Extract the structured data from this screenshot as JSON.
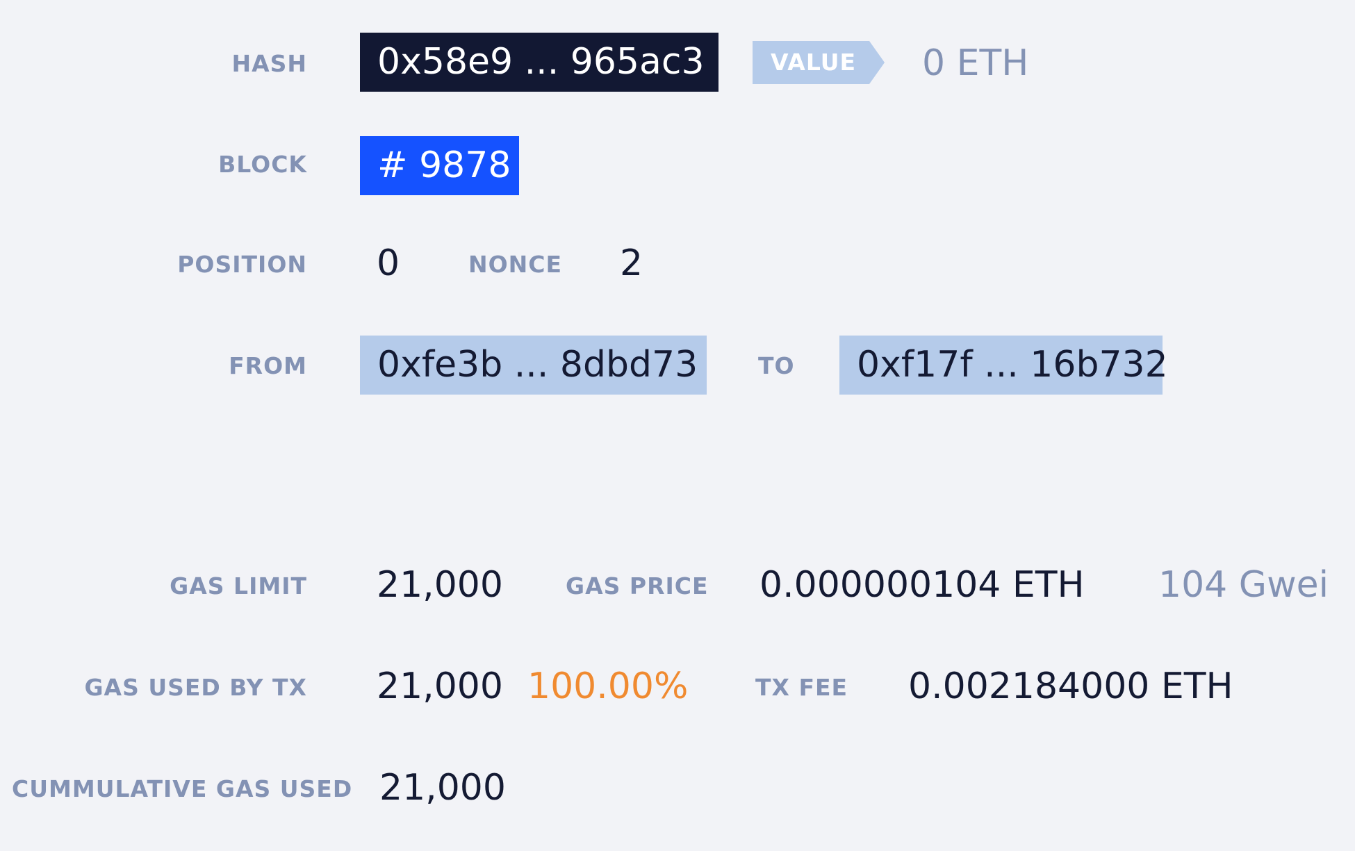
{
  "tx": {
    "hash_label": "HASH",
    "hash_value": "0x58e9 ... 965ac3",
    "value_label": "VALUE",
    "value_amount": "0 ETH",
    "block_label": "BLOCK",
    "block_value": "# 9878",
    "position_label": "POSITION",
    "position_value": "0",
    "nonce_label": "NONCE",
    "nonce_value": "2",
    "from_label": "FROM",
    "from_value": "0xfe3b ... 8dbd73",
    "to_label": "TO",
    "to_value": "0xf17f ... 16b732"
  },
  "gas": {
    "limit_label": "GAS LIMIT",
    "limit_value": "21,000",
    "price_label": "GAS PRICE",
    "price_eth": "0.000000104 ETH",
    "price_gwei": "104 Gwei",
    "used_label": "GAS USED BY TX",
    "used_value": "21,000",
    "used_percent": "100.00%",
    "fee_label": "TX FEE",
    "fee_value": "0.002184000 ETH",
    "cumulative_label": "CUMMULATIVE GAS USED",
    "cumulative_value": "21,000"
  },
  "colors": {
    "background": "#f2f3f7",
    "label": "#8392b4",
    "hash_chip": "#121833",
    "block_chip": "#1552ff",
    "address_chip": "#b5cbea",
    "percent": "#f08a30"
  }
}
